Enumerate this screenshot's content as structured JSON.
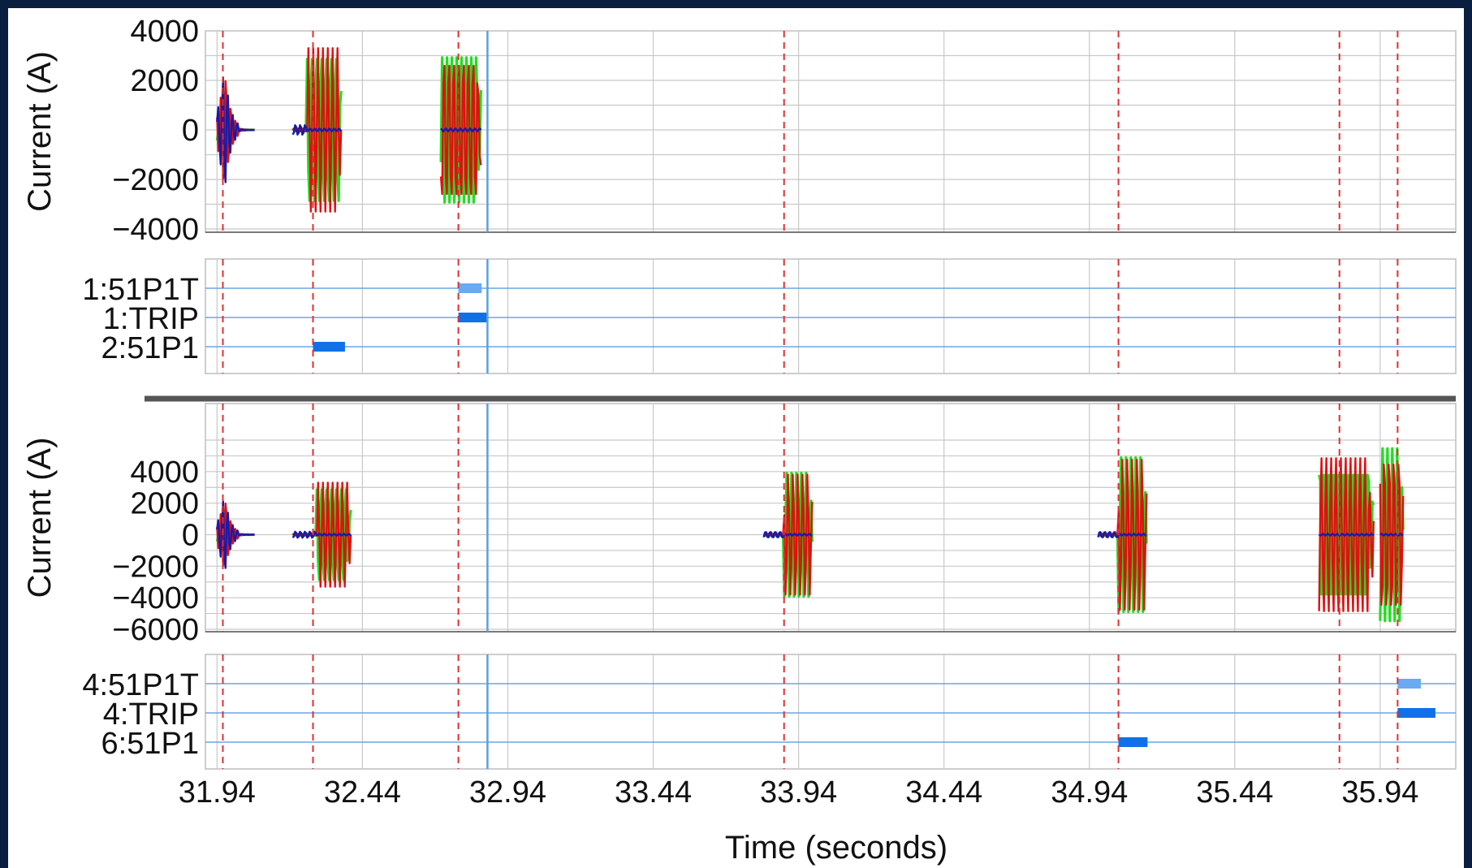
{
  "chart_data": {
    "type": "line",
    "xlabel": "Time (seconds)",
    "x_ticks": [
      31.94,
      32.44,
      32.94,
      33.44,
      33.94,
      34.44,
      34.94,
      35.44,
      35.94
    ],
    "x_tick_labels": [
      "31.94",
      "32.44",
      "32.94",
      "33.44",
      "33.94",
      "34.44",
      "34.94",
      "35.44",
      "35.94"
    ],
    "xlim": [
      31.9,
      36.2
    ],
    "colors": {
      "phase_a": "#e01010",
      "phase_b": "#22dd22",
      "phase_c": "#1a1aa8",
      "marker_line": "#e03030",
      "cursor_line": "#5aa0e0",
      "digital_line": "#6aa6e6",
      "digital_bar": "#1070e8",
      "digital_bar_light": "#6aaaf0",
      "separator": "#555555",
      "grid": "#c8c8c8",
      "background_frame": "#0a1f3f"
    },
    "event_markers": [
      31.96,
      32.27,
      32.77,
      33.89,
      35.04,
      35.8,
      36.0
    ],
    "cursor": 32.87,
    "panels": [
      {
        "kind": "analog",
        "ylabel": "Current (A)",
        "ylim": [
          -4000,
          4000
        ],
        "y_ticks": [
          4000,
          2000,
          0,
          -2000,
          -4000
        ],
        "y_tick_labels": [
          "4000",
          "2000",
          "0",
          "−2000",
          "−4000"
        ],
        "bursts": [
          {
            "type": "transient",
            "start": 31.94,
            "end": 32.07,
            "peak": 3000,
            "center": 31.965
          },
          {
            "type": "fault",
            "start": 32.2,
            "end": 32.37,
            "amp": 3300,
            "pre": 0.05
          },
          {
            "type": "fault",
            "start": 32.71,
            "end": 32.85,
            "amp": 3200,
            "pre": 0.0
          }
        ]
      },
      {
        "kind": "digital",
        "channels": [
          "1:51P1T",
          "1:TRIP",
          "2:51P1"
        ],
        "bars": [
          {
            "channel": 0,
            "start": 32.77,
            "end": 32.85,
            "shade": "light"
          },
          {
            "channel": 1,
            "start": 32.77,
            "end": 32.87,
            "shade": "dark"
          },
          {
            "channel": 2,
            "start": 32.27,
            "end": 32.38,
            "shade": "dark"
          }
        ]
      },
      {
        "kind": "analog",
        "ylabel": "Current (A)",
        "ylim": [
          -6000,
          6000
        ],
        "y_ticks": [
          4000,
          2000,
          0,
          -2000,
          -4000,
          -6000
        ],
        "y_tick_labels": [
          "4000",
          "2000",
          "0",
          "−2000",
          "−4000",
          "−6000"
        ],
        "bursts": [
          {
            "type": "transient",
            "start": 31.94,
            "end": 32.07,
            "peak": 3000,
            "center": 31.965
          },
          {
            "type": "fault",
            "start": 32.2,
            "end": 32.4,
            "amp": 3300,
            "pre": 0.08
          },
          {
            "type": "fault",
            "start": 33.82,
            "end": 33.99,
            "amp": 4000,
            "pre": 0.07
          },
          {
            "type": "fault",
            "start": 34.97,
            "end": 35.14,
            "amp": 5000,
            "pre": 0.07
          },
          {
            "type": "fault",
            "start": 35.73,
            "end": 35.92,
            "amp": 5100,
            "pre": 0.0
          },
          {
            "type": "fault",
            "start": 35.94,
            "end": 36.02,
            "amp": 5500,
            "pre": 0.0
          }
        ]
      },
      {
        "kind": "digital",
        "channels": [
          "4:51P1T",
          "4:TRIP",
          "6:51P1"
        ],
        "bars": [
          {
            "channel": 0,
            "start": 36.0,
            "end": 36.08,
            "shade": "light"
          },
          {
            "channel": 1,
            "start": 36.0,
            "end": 36.13,
            "shade": "dark"
          },
          {
            "channel": 2,
            "start": 35.04,
            "end": 35.14,
            "shade": "dark"
          }
        ]
      }
    ]
  }
}
